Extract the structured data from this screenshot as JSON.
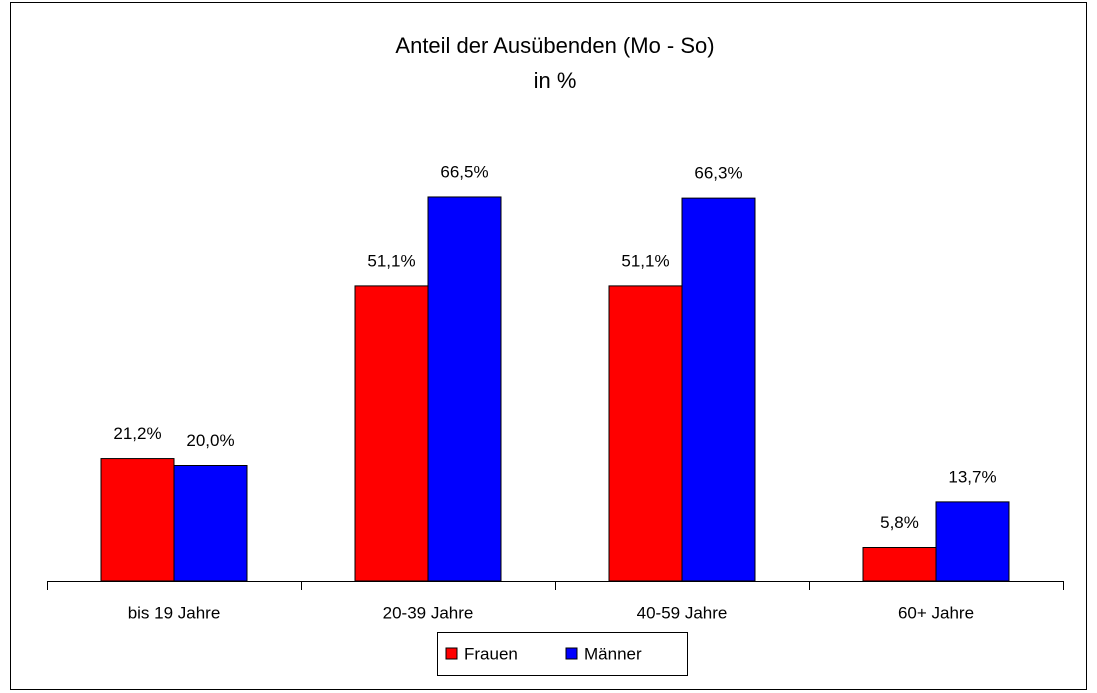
{
  "chart_data": {
    "type": "bar",
    "title": "Anteil der Ausübenden (Mo - So)",
    "subtitle": "in %",
    "categories": [
      "bis 19 Jahre",
      "20-39 Jahre",
      "40-59 Jahre",
      "60+ Jahre"
    ],
    "series": [
      {
        "name": "Frauen",
        "color": "#ff0000",
        "values": [
          21.2,
          51.1,
          51.1,
          5.8
        ],
        "value_labels": [
          "21,2%",
          "51,1%",
          "51,1%",
          "5,8%"
        ]
      },
      {
        "name": "Männer",
        "color": "#0000ff",
        "values": [
          20.0,
          66.5,
          66.3,
          13.7
        ],
        "value_labels": [
          "20,0%",
          "66,5%",
          "66,3%",
          "13,7%"
        ]
      }
    ],
    "ylim": [
      0,
      80
    ],
    "legend": "bottom"
  }
}
